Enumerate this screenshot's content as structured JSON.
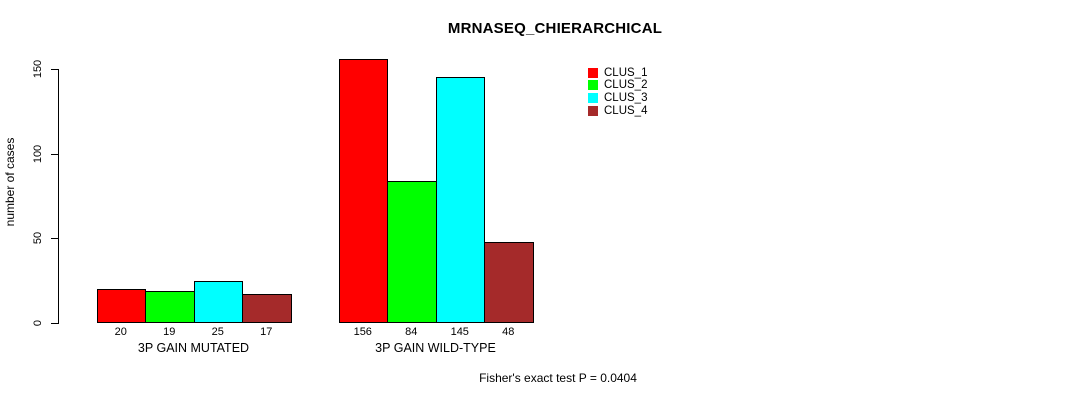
{
  "title": "MRNASEQ_CHIERARCHICAL",
  "footer": "Fisher's exact test P = 0.0404",
  "chart_data": {
    "type": "bar",
    "title": "MRNASEQ_CHIERARCHICAL",
    "xlabel": "",
    "ylabel": "number of cases",
    "categories": [
      "3P GAIN MUTATED",
      "3P GAIN WILD-TYPE"
    ],
    "series": [
      {
        "name": "CLUS_1",
        "color": "#FF0000",
        "values": [
          20,
          156
        ]
      },
      {
        "name": "CLUS_2",
        "color": "#00FF00",
        "values": [
          19,
          84
        ]
      },
      {
        "name": "CLUS_3",
        "color": "#00FFFF",
        "values": [
          25,
          145
        ]
      },
      {
        "name": "CLUS_4",
        "color": "#A52A2A",
        "values": [
          17,
          48
        ]
      }
    ],
    "bar_value_labels": [
      [
        "20",
        "19",
        "25",
        "17"
      ],
      [
        "156",
        "84",
        "145",
        "48"
      ]
    ],
    "yticks": [
      0,
      50,
      100,
      150
    ],
    "ylim": [
      0,
      162
    ],
    "grid": false,
    "legend_position": "top-right",
    "annotation": "Fisher's exact test P = 0.0404"
  }
}
